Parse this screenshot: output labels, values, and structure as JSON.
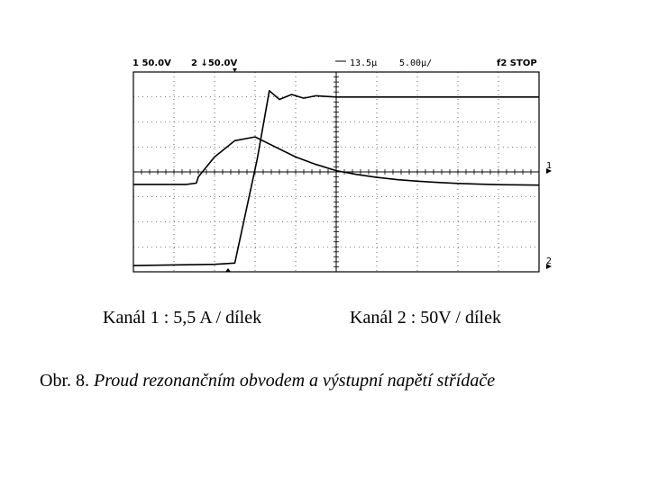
{
  "scope": {
    "ch1_setting": "1 50.0V",
    "ch2_setting": "2 ↓50.0V",
    "delay": "13.5µ",
    "timebase": "5.00µ/",
    "mode": "f2 STOP",
    "marker_ch1": "1",
    "marker_ch2": "2"
  },
  "labels": {
    "ch1": "Kanál 1 :  5,5 A / dílek",
    "ch2": "Kanál 2 : 50V / dílek"
  },
  "caption": {
    "number": "Obr. 8.",
    "text": "Proud rezonančním obvodem a výstupní napětí střídače"
  },
  "colors": {
    "trace": "#000000",
    "grid": "#000000",
    "background": "#ffffff"
  },
  "chart_data": {
    "type": "line",
    "grid": true,
    "x_divisions": 10,
    "y_divisions": 8,
    "xlim": [
      0,
      10
    ],
    "ylim": [
      0,
      8
    ],
    "series": [
      {
        "x": [
          0,
          1.3,
          1.55,
          1.6,
          1.65,
          2.0,
          2.5,
          3.0,
          3.5,
          4.0,
          4.5,
          5.0,
          5.5,
          6.0,
          6.5,
          7.0,
          7.5,
          8.0,
          8.5,
          9.0,
          9.5,
          10.0
        ],
        "values": [
          3.5,
          3.5,
          3.55,
          3.8,
          3.9,
          4.6,
          5.25,
          5.4,
          5.0,
          4.6,
          4.3,
          4.05,
          3.9,
          3.78,
          3.69,
          3.63,
          3.58,
          3.54,
          3.51,
          3.49,
          3.48,
          3.47
        ]
      },
      {
        "x": [
          0,
          2.0,
          2.5,
          3.05,
          3.35,
          3.6,
          3.9,
          4.2,
          4.5,
          5.0,
          6.0,
          7.0,
          8.0,
          9.0,
          10.0
        ],
        "values": [
          0.25,
          0.3,
          0.35,
          4.5,
          7.25,
          6.9,
          7.1,
          6.95,
          7.05,
          7.0,
          7.0,
          7.0,
          7.0,
          7.0,
          7.0
        ]
      }
    ]
  }
}
